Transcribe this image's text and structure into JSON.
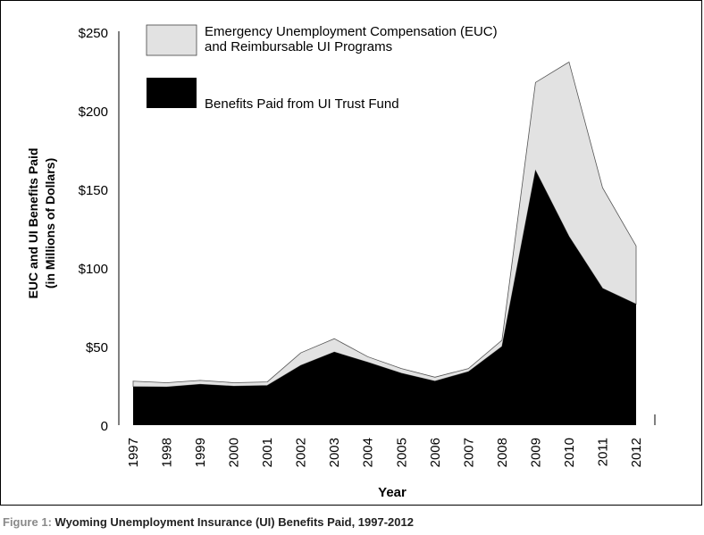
{
  "chart_data": {
    "type": "area",
    "stacked": true,
    "x": [
      "1997",
      "1998",
      "1999",
      "2000",
      "2001",
      "2002",
      "2003",
      "2004",
      "2005",
      "2006",
      "2007",
      "2008",
      "2009",
      "2010",
      "2011",
      "2012"
    ],
    "xlabel": "Year",
    "ylabel_line1": "EUC and UI Benefits Paid",
    "ylabel_line2": "(in Millions of Dollars)",
    "ylim": [
      0,
      250
    ],
    "yticks": [
      {
        "value": 0,
        "label": "0"
      },
      {
        "value": 50,
        "label": "$50"
      },
      {
        "value": 100,
        "label": "$100"
      },
      {
        "value": 150,
        "label": "$150"
      },
      {
        "value": 200,
        "label": "$200"
      },
      {
        "value": 250,
        "label": "$250"
      }
    ],
    "legend_position": "top-left",
    "series": [
      {
        "name": "Benefits Paid from UI Trust Fund",
        "color": "#000000",
        "values": [
          24.5,
          24.3,
          26,
          24.8,
          25.2,
          38,
          46.5,
          40,
          33,
          28,
          34,
          50,
          162,
          120,
          87,
          77
        ]
      },
      {
        "name": "Emergency Unemployment Compensation (EUC) and Reimbursable  UI Programs",
        "legend_line1": "Emergency Unemployment Compensation (EUC)",
        "legend_line2": "and Reimbursable  UI Programs",
        "color": "#e2e2e2",
        "values": [
          3.5,
          2.7,
          2.5,
          2.2,
          2.3,
          8,
          8.5,
          3.5,
          3,
          2.5,
          2,
          4,
          56,
          111,
          64,
          37
        ]
      }
    ]
  },
  "caption": {
    "label": "Figure 1:",
    "text": "Wyoming Unemployment Insurance (UI) Benefits Paid, 1997-2012"
  }
}
